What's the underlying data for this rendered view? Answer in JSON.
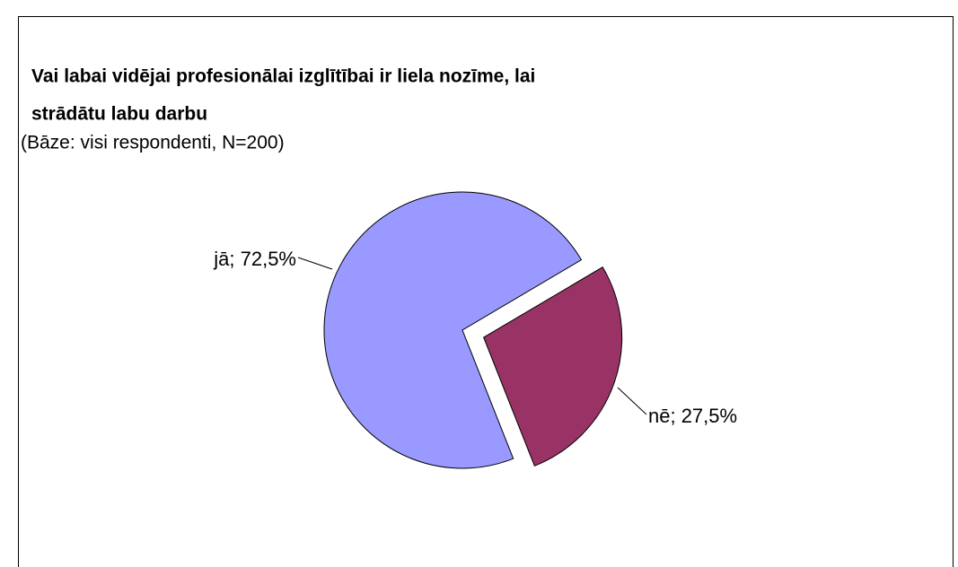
{
  "chart_data": {
    "type": "pie",
    "title": [
      "Vai labai vidējai profesionālai izglītībai ir liela nozīme, lai",
      "strādātu labu darbu"
    ],
    "subtitle": "(Bāze: visi respondenti, N=200)",
    "values": [
      72.5,
      27.5
    ],
    "value_labels": [
      "jā; 72,5%",
      "nē; 27,5%"
    ],
    "colors": [
      "#9999ff",
      "#993366"
    ]
  }
}
